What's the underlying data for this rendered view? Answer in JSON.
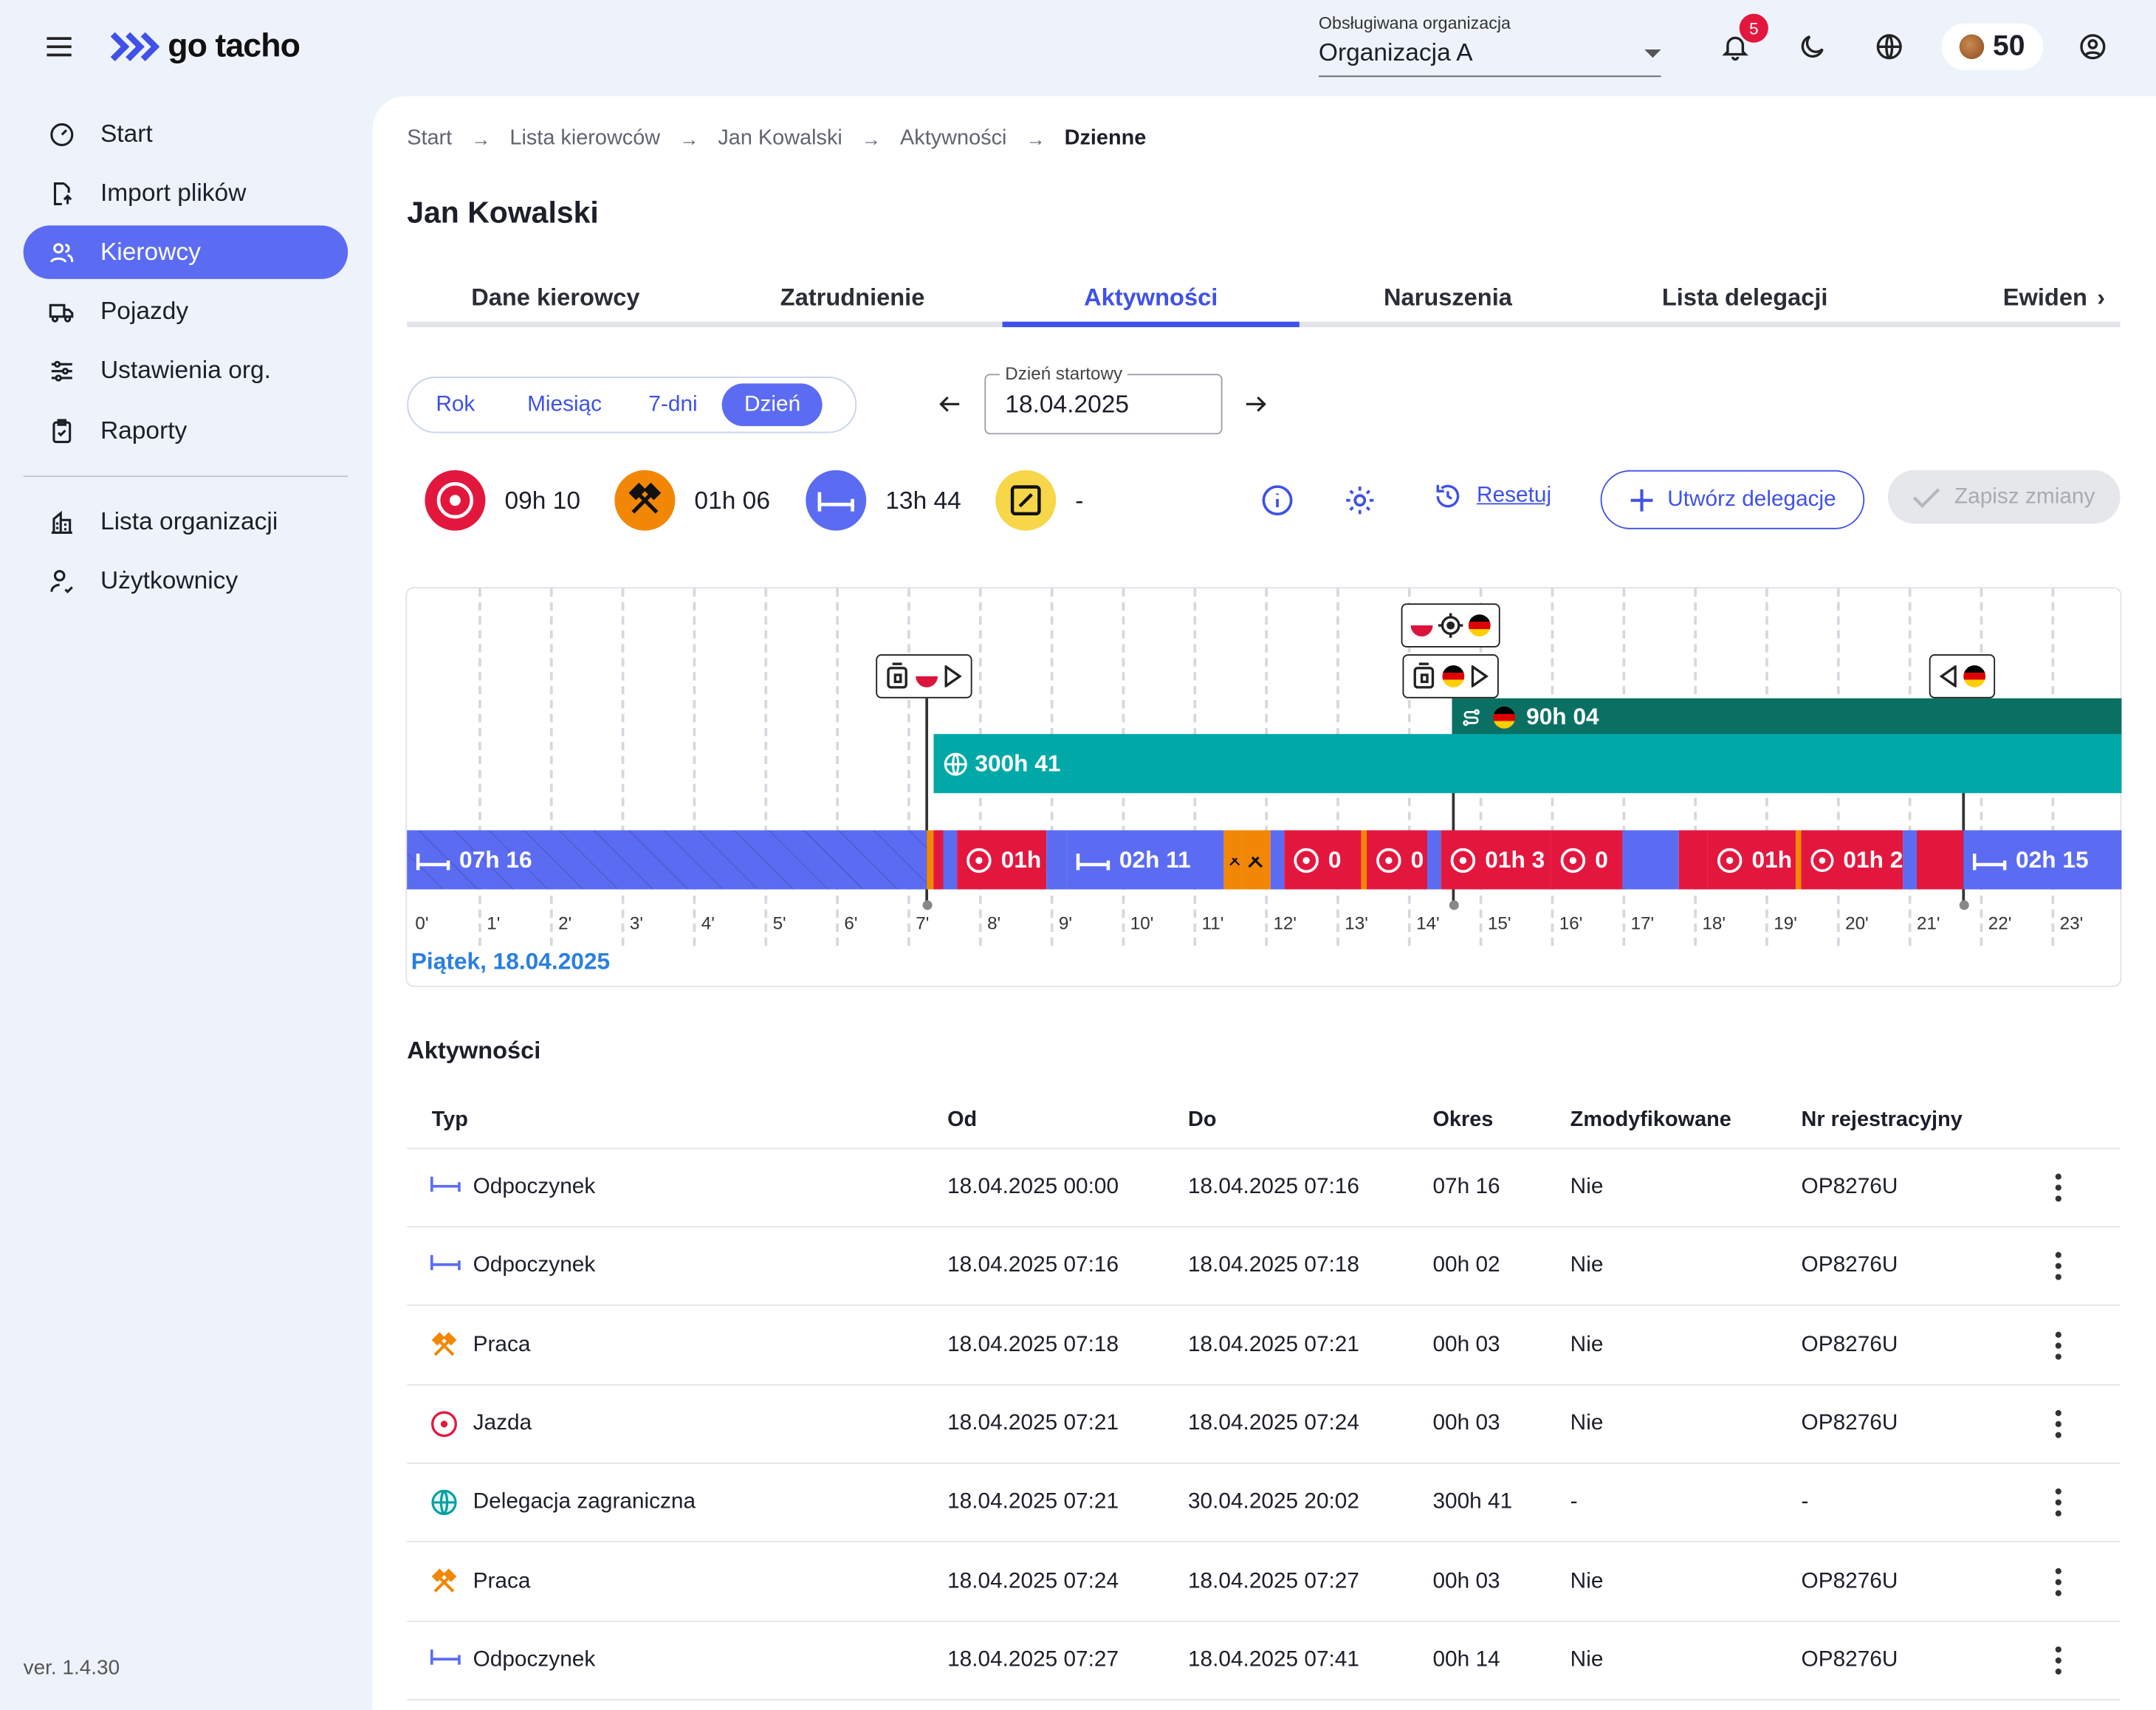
{
  "topbar": {
    "logo_text": "go tacho",
    "org_label": "Obsługiwana organizacja",
    "org_value": "Organizacja A",
    "notifications_count": "5",
    "coins": "50"
  },
  "sidebar": {
    "items": [
      {
        "label": "Start",
        "icon": "dashboard-icon"
      },
      {
        "label": "Import plików",
        "icon": "file-import-icon"
      },
      {
        "label": "Kierowcy",
        "icon": "users-icon",
        "active": true
      },
      {
        "label": "Pojazdy",
        "icon": "truck-icon"
      },
      {
        "label": "Ustawienia org.",
        "icon": "sliders-icon"
      },
      {
        "label": "Raporty",
        "icon": "clipboard-icon"
      }
    ],
    "items2": [
      {
        "label": "Lista organizacji",
        "icon": "building-icon"
      },
      {
        "label": "Użytkownicy",
        "icon": "user-check-icon"
      }
    ],
    "version": "ver. 1.4.30"
  },
  "breadcrumbs": [
    "Start",
    "Lista kierowców",
    "Jan Kowalski",
    "Aktywności",
    "Dzienne"
  ],
  "page_title": "Jan Kowalski",
  "tabs": [
    "Dane kierowcy",
    "Zatrudnienie",
    "Aktywności",
    "Naruszenia",
    "Lista delegacji",
    "Ewiden"
  ],
  "active_tab": "Aktywności",
  "range_selector": {
    "options": [
      "Rok",
      "Miesiąc",
      "7-dni",
      "Dzień"
    ],
    "active": "Dzień"
  },
  "date_picker": {
    "label": "Dzień startowy",
    "value": "18.04.2025"
  },
  "stats": {
    "driving": "09h 10",
    "work": "01h 06",
    "rest": "13h 44",
    "availability": "-"
  },
  "actions": {
    "reset": "Resetuj",
    "create_delegation": "Utwórz delegacje",
    "save": "Zapisz zmiany"
  },
  "timeline": {
    "day_label": "Piątek, 18.04.2025",
    "hours": [
      "0'",
      "1'",
      "2'",
      "3'",
      "4'",
      "5'",
      "6'",
      "7'",
      "8'",
      "9'",
      "10'",
      "11'",
      "12'",
      "13'",
      "14'",
      "15'",
      "16'",
      "17'",
      "18'",
      "19'",
      "20'",
      "21'",
      "22'",
      "23'"
    ],
    "border_crossing_label": "90h 04",
    "delegation_label": "300h 41",
    "segments": [
      {
        "type": "rest",
        "label": "07h 16"
      },
      {
        "type": "driving",
        "label": "01h"
      },
      {
        "type": "rest",
        "label": "02h 11"
      },
      {
        "type": "driving",
        "label": "0"
      },
      {
        "type": "driving",
        "label": "0"
      },
      {
        "type": "driving",
        "label": "01h 3"
      },
      {
        "type": "driving",
        "label": "0"
      },
      {
        "type": "driving",
        "label": "01h"
      },
      {
        "type": "driving",
        "label": "01h 2"
      },
      {
        "type": "rest",
        "label": "02h 15"
      }
    ],
    "colors": {
      "rest": "#5b6cf2",
      "driving": "#e3173e",
      "work": "#f28705",
      "delegation": "#00a8a8",
      "crossing": "#0b7064"
    }
  },
  "activities": {
    "title": "Aktywności",
    "columns": [
      "Typ",
      "Od",
      "Do",
      "Okres",
      "Zmodyfikowane",
      "Nr rejestracyjny"
    ],
    "rows": [
      {
        "type": "Odpoczynek",
        "icon": "bed-icon",
        "from": "18.04.2025 00:00",
        "to": "18.04.2025 07:16",
        "period": "07h 16",
        "modified": "Nie",
        "plate": "OP8276U"
      },
      {
        "type": "Odpoczynek",
        "icon": "bed-icon",
        "from": "18.04.2025 07:16",
        "to": "18.04.2025 07:18",
        "period": "00h 02",
        "modified": "Nie",
        "plate": "OP8276U"
      },
      {
        "type": "Praca",
        "icon": "hammer-icon",
        "from": "18.04.2025 07:18",
        "to": "18.04.2025 07:21",
        "period": "00h 03",
        "modified": "Nie",
        "plate": "OP8276U"
      },
      {
        "type": "Jazda",
        "icon": "steering-wheel-icon",
        "from": "18.04.2025 07:21",
        "to": "18.04.2025 07:24",
        "period": "00h 03",
        "modified": "Nie",
        "plate": "OP8276U"
      },
      {
        "type": "Delegacja zagraniczna",
        "icon": "globe-icon",
        "from": "18.04.2025 07:21",
        "to": "30.04.2025 20:02",
        "period": "300h 41",
        "modified": "-",
        "plate": "-"
      },
      {
        "type": "Praca",
        "icon": "hammer-icon",
        "from": "18.04.2025 07:24",
        "to": "18.04.2025 07:27",
        "period": "00h 03",
        "modified": "Nie",
        "plate": "OP8276U"
      },
      {
        "type": "Odpoczynek",
        "icon": "bed-icon",
        "from": "18.04.2025 07:27",
        "to": "18.04.2025 07:41",
        "period": "00h 14",
        "modified": "Nie",
        "plate": "OP8276U"
      }
    ]
  }
}
